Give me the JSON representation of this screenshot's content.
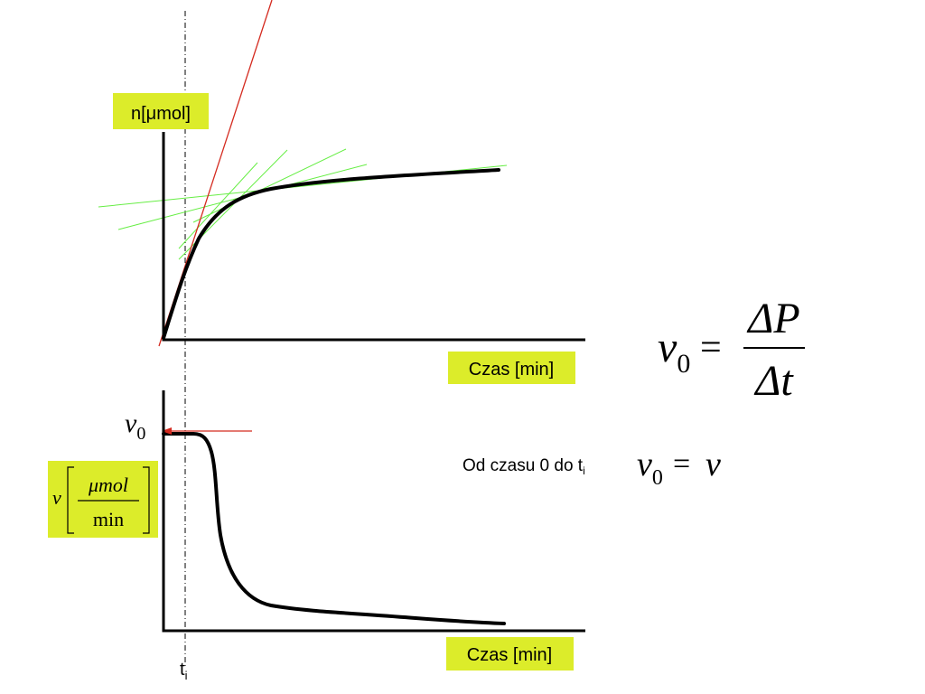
{
  "colors": {
    "label_bg": "#dcec2a",
    "tangent_lines": "#66ee44",
    "initial_tangent": "#d42a1f",
    "curves": "#000000"
  },
  "top_plot": {
    "y_label": "n[μmol]",
    "x_label": "Czas [min]"
  },
  "bottom_plot": {
    "y_label": {
      "variable": "v",
      "numerator": "μmol",
      "denominator": "min"
    },
    "y_marker": {
      "symbol": "v",
      "subscript": "0"
    },
    "x_label": "Czas [min]",
    "time_marker": {
      "symbol": "t",
      "subscript": "i"
    }
  },
  "formula": {
    "lhs_symbol": "v",
    "lhs_subscript": "0",
    "equals": "=",
    "numerator": "ΔP",
    "denominator": "Δt"
  },
  "note": {
    "text_prefix": "Od czasu 0 do t",
    "text_subscript": "i",
    "lhs_symbol": "v",
    "lhs_subscript": "0",
    "equals": "=",
    "rhs_symbol": "v"
  }
}
